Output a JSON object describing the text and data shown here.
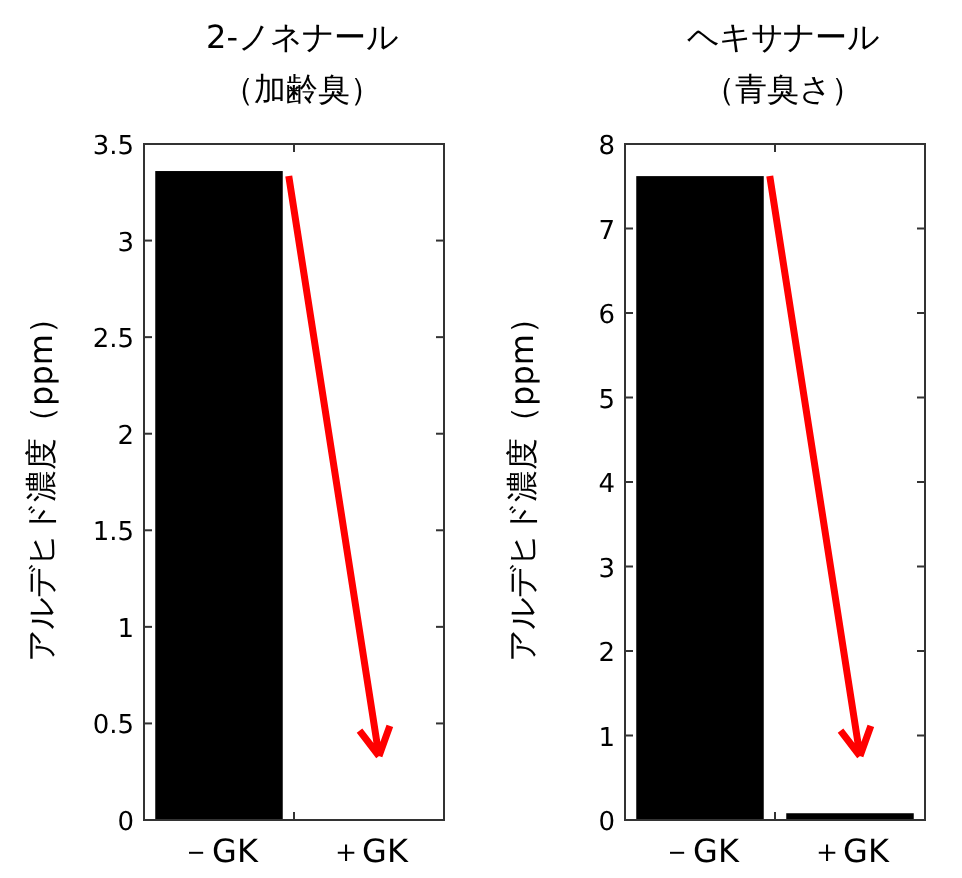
{
  "chart_data": [
    {
      "type": "bar",
      "title": "2-ノネナール",
      "subtitle": "（加齢臭）",
      "ylabel": "アルデヒド濃度（ppm）",
      "categories": [
        "－GK",
        "＋GK"
      ],
      "values": [
        3.36,
        0
      ],
      "color": "#000000",
      "ylim": [
        0,
        3.5
      ],
      "yticks": [
        0,
        0.5,
        1,
        1.5,
        2,
        2.5,
        3,
        3.5
      ],
      "grid": false
    },
    {
      "type": "bar",
      "title": "ヘキサナール",
      "subtitle": "（青臭さ）",
      "ylabel": "アルデヒド濃度（ppm）",
      "categories": [
        "－GK",
        "＋GK"
      ],
      "values": [
        7.62,
        0.08
      ],
      "color": "#000000",
      "ylim": [
        0,
        8
      ],
      "yticks": [
        0,
        1,
        2,
        3,
        4,
        5,
        6,
        7,
        8
      ],
      "grid": false
    }
  ]
}
